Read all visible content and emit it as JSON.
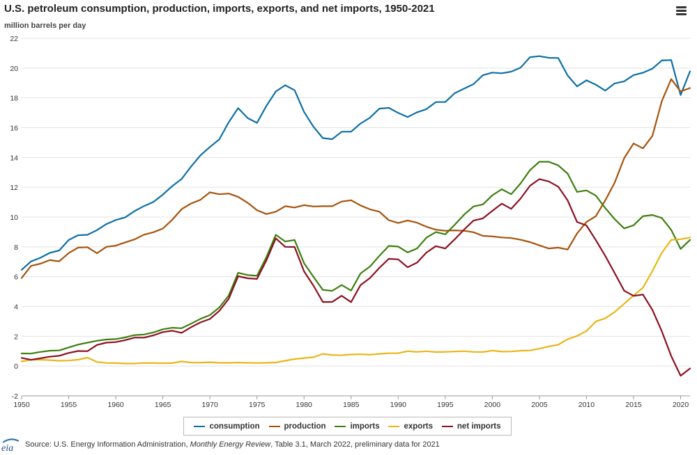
{
  "title": "U.S. petroleum consumption, production, imports, exports, and net imports, 1950-2021",
  "subtitle": "million barrels per day",
  "menu_icon": "hamburger-menu-icon",
  "logo_text": "eia",
  "source": {
    "prefix": "Source: U.S. Energy Information Administration,",
    "publication": "Monthly Energy Review",
    "suffix": ", Table 3.1, March 2022, preliminary data for 2021"
  },
  "chart_data": {
    "type": "line",
    "title": "U.S. petroleum consumption, production, imports, exports, and net imports, 1950-2021",
    "ylabel": "million barrels per day",
    "xlabel": "",
    "xlim": [
      1950,
      2021
    ],
    "ylim": [
      -2,
      22
    ],
    "x_ticks": [
      1950,
      1955,
      1960,
      1965,
      1970,
      1975,
      1980,
      1985,
      1990,
      1995,
      2000,
      2005,
      2010,
      2015,
      2020
    ],
    "y_ticks": [
      -2,
      0,
      2,
      4,
      6,
      8,
      10,
      12,
      14,
      16,
      18,
      20,
      22
    ],
    "grid": "horizontal",
    "legend_position": "bottom",
    "x": [
      1950,
      1951,
      1952,
      1953,
      1954,
      1955,
      1956,
      1957,
      1958,
      1959,
      1960,
      1961,
      1962,
      1963,
      1964,
      1965,
      1966,
      1967,
      1968,
      1969,
      1970,
      1971,
      1972,
      1973,
      1974,
      1975,
      1976,
      1977,
      1978,
      1979,
      1980,
      1981,
      1982,
      1983,
      1984,
      1985,
      1986,
      1987,
      1988,
      1989,
      1990,
      1991,
      1992,
      1993,
      1994,
      1995,
      1996,
      1997,
      1998,
      1999,
      2000,
      2001,
      2002,
      2003,
      2004,
      2005,
      2006,
      2007,
      2008,
      2009,
      2010,
      2011,
      2012,
      2013,
      2014,
      2015,
      2016,
      2017,
      2018,
      2019,
      2020,
      2021
    ],
    "series": [
      {
        "name": "consumption",
        "color": "#0b6fa6",
        "values": [
          6.46,
          7.02,
          7.27,
          7.6,
          7.76,
          8.46,
          8.78,
          8.81,
          9.12,
          9.53,
          9.8,
          9.98,
          10.4,
          10.74,
          11.02,
          11.51,
          12.08,
          12.56,
          13.39,
          14.14,
          14.7,
          15.21,
          16.37,
          17.31,
          16.65,
          16.32,
          17.46,
          18.43,
          18.85,
          18.51,
          17.06,
          16.06,
          15.3,
          15.23,
          15.73,
          15.73,
          16.28,
          16.67,
          17.28,
          17.33,
          16.99,
          16.71,
          17.03,
          17.24,
          17.72,
          17.72,
          18.31,
          18.62,
          18.92,
          19.52,
          19.7,
          19.65,
          19.76,
          20.03,
          20.73,
          20.8,
          20.69,
          20.68,
          19.5,
          18.77,
          19.18,
          18.88,
          18.49,
          18.97,
          19.11,
          19.53,
          19.69,
          19.96,
          20.51,
          20.54,
          18.19,
          19.78
        ]
      },
      {
        "name": "production",
        "color": "#a6520a",
        "values": [
          5.91,
          6.72,
          6.87,
          7.11,
          7.03,
          7.58,
          7.95,
          7.98,
          7.57,
          8.0,
          8.08,
          8.3,
          8.5,
          8.82,
          8.98,
          9.23,
          9.82,
          10.53,
          10.91,
          11.16,
          11.66,
          11.53,
          11.58,
          11.36,
          10.96,
          10.46,
          10.2,
          10.36,
          10.73,
          10.64,
          10.8,
          10.71,
          10.73,
          10.73,
          11.04,
          11.13,
          10.78,
          10.52,
          10.36,
          9.79,
          9.6,
          9.77,
          9.62,
          9.35,
          9.15,
          9.08,
          9.11,
          9.08,
          8.98,
          8.74,
          8.7,
          8.63,
          8.59,
          8.48,
          8.32,
          8.1,
          7.89,
          7.95,
          7.82,
          8.9,
          9.67,
          10.06,
          11.12,
          12.31,
          13.95,
          14.94,
          14.61,
          15.45,
          17.78,
          19.26,
          18.43,
          18.66
        ]
      },
      {
        "name": "imports",
        "color": "#3c7e0d",
        "values": [
          0.85,
          0.84,
          0.95,
          1.03,
          1.05,
          1.25,
          1.44,
          1.57,
          1.7,
          1.78,
          1.81,
          1.92,
          2.08,
          2.12,
          2.26,
          2.47,
          2.57,
          2.54,
          2.84,
          3.17,
          3.42,
          3.93,
          4.74,
          6.26,
          6.11,
          6.06,
          7.31,
          8.81,
          8.36,
          8.46,
          6.91,
          5.99,
          5.11,
          5.05,
          5.44,
          5.07,
          6.22,
          6.68,
          7.4,
          8.06,
          8.02,
          7.63,
          7.89,
          8.62,
          8.99,
          8.84,
          9.48,
          10.16,
          10.71,
          10.85,
          11.46,
          11.87,
          11.53,
          12.26,
          13.15,
          13.71,
          13.71,
          13.47,
          12.92,
          11.69,
          11.79,
          11.44,
          10.6,
          9.86,
          9.24,
          9.45,
          10.06,
          10.14,
          9.94,
          9.14,
          7.86,
          8.47
        ]
      },
      {
        "name": "exports",
        "color": "#e9b516",
        "values": [
          0.31,
          0.42,
          0.43,
          0.4,
          0.36,
          0.37,
          0.43,
          0.57,
          0.28,
          0.21,
          0.2,
          0.17,
          0.17,
          0.21,
          0.2,
          0.19,
          0.2,
          0.31,
          0.23,
          0.23,
          0.26,
          0.22,
          0.22,
          0.23,
          0.22,
          0.21,
          0.22,
          0.24,
          0.36,
          0.47,
          0.54,
          0.59,
          0.82,
          0.74,
          0.72,
          0.78,
          0.79,
          0.76,
          0.82,
          0.86,
          0.86,
          1.0,
          0.95,
          1.0,
          0.94,
          0.95,
          0.98,
          1.0,
          0.95,
          0.94,
          1.04,
          0.97,
          0.98,
          1.03,
          1.05,
          1.17,
          1.32,
          1.43,
          1.8,
          2.02,
          2.35,
          2.99,
          3.21,
          3.62,
          4.18,
          4.74,
          5.26,
          6.38,
          7.6,
          8.47,
          8.51,
          8.63
        ]
      },
      {
        "name": "net imports",
        "color": "#8b0f20",
        "values": [
          0.55,
          0.42,
          0.52,
          0.63,
          0.69,
          0.88,
          1.01,
          1.0,
          1.42,
          1.57,
          1.61,
          1.74,
          1.91,
          1.91,
          2.06,
          2.28,
          2.37,
          2.23,
          2.61,
          2.93,
          3.16,
          3.7,
          4.52,
          6.03,
          5.89,
          5.85,
          7.09,
          8.57,
          8.0,
          7.99,
          6.36,
          5.4,
          4.3,
          4.31,
          4.72,
          4.29,
          5.44,
          5.91,
          6.59,
          7.2,
          7.16,
          6.63,
          6.94,
          7.62,
          8.05,
          7.89,
          8.5,
          9.16,
          9.76,
          9.91,
          10.42,
          10.9,
          10.55,
          11.24,
          12.1,
          12.55,
          12.39,
          12.04,
          11.12,
          9.67,
          9.44,
          8.45,
          7.39,
          6.24,
          5.06,
          4.71,
          4.8,
          3.77,
          2.34,
          0.67,
          -0.65,
          -0.16
        ]
      }
    ]
  }
}
